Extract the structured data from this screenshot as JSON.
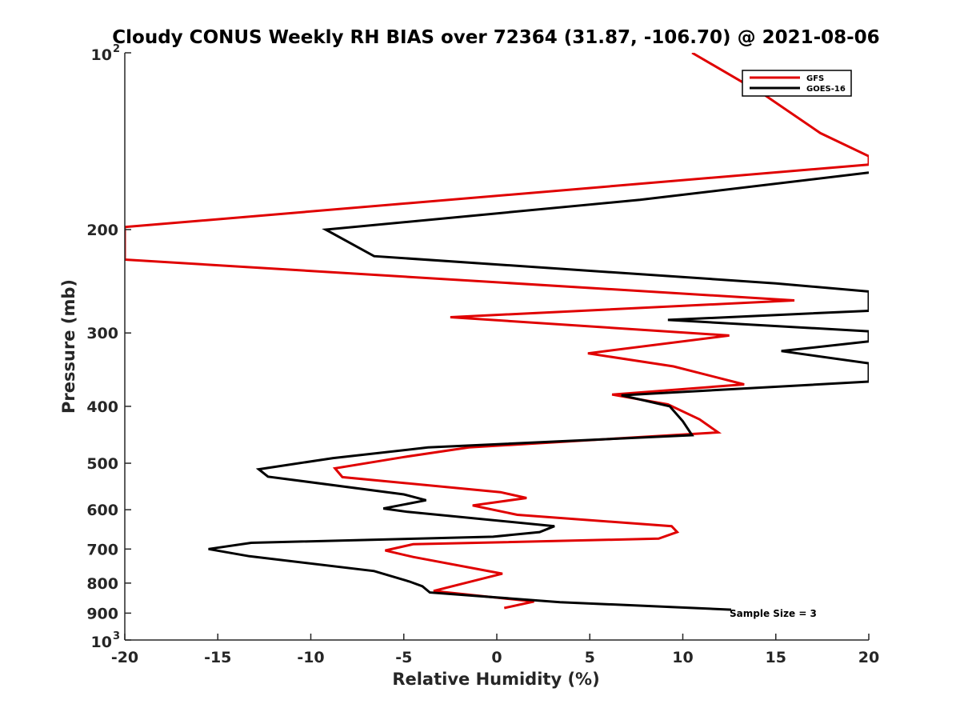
{
  "chart_data": {
    "type": "line",
    "title": "Cloudy CONUS Weekly RH BIAS over 72364 (31.87, -106.70) @ 2021-08-06",
    "xlabel": "Relative Humidity (%)",
    "ylabel": "Pressure (mb)",
    "xlim": [
      -20,
      20
    ],
    "ylim": [
      100,
      1000
    ],
    "yscale": "log",
    "yreverse": true,
    "x_ticks": [
      "-20",
      "-15",
      "-10",
      "-5",
      "0",
      "5",
      "10",
      "15",
      "20"
    ],
    "y_ticks": [
      {
        "value": 100,
        "base": "10",
        "exp": "2"
      },
      {
        "value": 200,
        "label": "200"
      },
      {
        "value": 300,
        "label": "300"
      },
      {
        "value": 400,
        "label": "400"
      },
      {
        "value": 500,
        "label": "500"
      },
      {
        "value": 600,
        "label": "600"
      },
      {
        "value": 700,
        "label": "700"
      },
      {
        "value": 800,
        "label": "800"
      },
      {
        "value": 900,
        "label": "900"
      },
      {
        "value": 1000,
        "base": "10",
        "exp": "3"
      }
    ],
    "legend_position": "top-right",
    "annotation": "Sample Size = 3",
    "series": [
      {
        "name": "GFS",
        "color": "#e00000",
        "points": [
          [
            10.5,
            100
          ],
          [
            14.4,
            118
          ],
          [
            17.4,
            137
          ],
          [
            20.0,
            150
          ],
          [
            20.0,
            155
          ],
          [
            -20.0,
            198
          ],
          [
            -20.0,
            225
          ],
          [
            16.0,
            264
          ],
          [
            -2.5,
            282
          ],
          [
            12.5,
            303
          ],
          [
            4.9,
            325
          ],
          [
            9.5,
            342
          ],
          [
            13.3,
            367
          ],
          [
            6.2,
            382
          ],
          [
            9.2,
            397
          ],
          [
            10.9,
            421
          ],
          [
            11.9,
            443
          ],
          [
            -1.5,
            470
          ],
          [
            -5.0,
            488
          ],
          [
            -8.7,
            510
          ],
          [
            -8.3,
            528
          ],
          [
            0.2,
            560
          ],
          [
            1.6,
            573
          ],
          [
            -1.3,
            590
          ],
          [
            1.1,
            612
          ],
          [
            9.4,
            640
          ],
          [
            9.7,
            655
          ],
          [
            8.7,
            672
          ],
          [
            -4.5,
            687
          ],
          [
            -6.0,
            704
          ],
          [
            -4.5,
            722
          ],
          [
            0.3,
            771
          ],
          [
            -3.4,
            825
          ],
          [
            2.0,
            860
          ],
          [
            0.4,
            882
          ]
        ]
      },
      {
        "name": "GOES-16",
        "color": "#000000",
        "points": [
          [
            20.0,
            160
          ],
          [
            7.7,
            178
          ],
          [
            -9.2,
            200
          ],
          [
            -6.6,
            222
          ],
          [
            15.0,
            247
          ],
          [
            20.0,
            255
          ],
          [
            20.0,
            275
          ],
          [
            9.2,
            285
          ],
          [
            20.0,
            298
          ],
          [
            20.0,
            310
          ],
          [
            15.3,
            322
          ],
          [
            20.0,
            338
          ],
          [
            20.0,
            363
          ],
          [
            6.7,
            383
          ],
          [
            9.3,
            400
          ],
          [
            10.0,
            424
          ],
          [
            10.5,
            448
          ],
          [
            -3.7,
            470
          ],
          [
            -8.8,
            490
          ],
          [
            -12.8,
            512
          ],
          [
            -12.3,
            527
          ],
          [
            -5.0,
            565
          ],
          [
            -3.8,
            578
          ],
          [
            -6.1,
            597
          ],
          [
            -4.8,
            605
          ],
          [
            3.1,
            640
          ],
          [
            2.3,
            655
          ],
          [
            -0.2,
            667
          ],
          [
            -13.2,
            683
          ],
          [
            -15.5,
            700
          ],
          [
            -13.3,
            720
          ],
          [
            -6.6,
            763
          ],
          [
            -4.7,
            795
          ],
          [
            -4.0,
            810
          ],
          [
            -3.6,
            830
          ],
          [
            3.4,
            862
          ],
          [
            12.6,
            888
          ]
        ]
      }
    ]
  }
}
